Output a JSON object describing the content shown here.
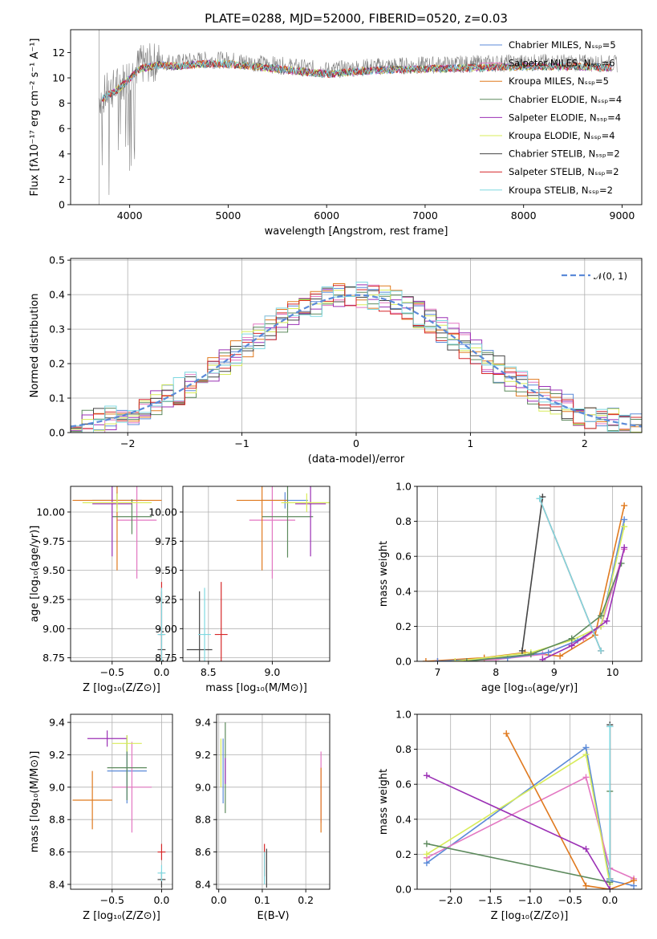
{
  "chart_data": [
    {
      "id": "spectrum",
      "type": "line",
      "title": "PLATE=0288, MJD=52000, FIBERID=0520, z=0.03",
      "xlabel": "wavelength [Angstrom, rest frame]",
      "ylabel": "Flux [fλ10⁻¹⁷ erg cm⁻² s⁻¹ A⁻¹]",
      "xlim": [
        3400,
        9200
      ],
      "ylim": [
        0,
        13.8
      ],
      "xticks": [
        "4000",
        "5000",
        "6000",
        "7000",
        "8000",
        "9000"
      ],
      "yticks": [
        "0",
        "2",
        "4",
        "6",
        "8",
        "10",
        "12"
      ],
      "grid": false,
      "legend_position": "upper-right",
      "legend": [
        {
          "label": "Chabrier MILES, Nₛₛₚ=5",
          "color": "#5b8ad8"
        },
        {
          "label": "Salpeter MILES, Nₛₛₚ=6",
          "color": "#e377c2"
        },
        {
          "label": "Kroupa MILES, Nₛₛₚ=5",
          "color": "#e07a1f"
        },
        {
          "label": "Chabrier ELODIE, Nₛₛₚ=4",
          "color": "#5d8a5d"
        },
        {
          "label": "Salpeter ELODIE, Nₛₛₚ=4",
          "color": "#9b30b5"
        },
        {
          "label": "Kroupa ELODIE, Nₛₛₚ=4",
          "color": "#d8ec5a"
        },
        {
          "label": "Chabrier STELIB, Nₛₛₚ=2",
          "color": "#444444"
        },
        {
          "label": "Salpeter STELIB, Nₛₛₚ=2",
          "color": "#d62728"
        },
        {
          "label": "Kroupa STELIB, Nₛₛₚ=2",
          "color": "#7fd8e0"
        }
      ],
      "data_color": "#808080",
      "continuum": {
        "x": [
          3700,
          3900,
          4100,
          4300,
          4500,
          4700,
          5000,
          5500,
          6000,
          6500,
          7000,
          7500,
          8000,
          8500,
          8900
        ],
        "y": [
          8.5,
          9.5,
          11.0,
          11.3,
          11.2,
          11.4,
          11.4,
          11.0,
          10.6,
          10.9,
          11.0,
          11.1,
          11.2,
          11.2,
          11.1
        ]
      }
    },
    {
      "id": "residuals",
      "type": "histogram",
      "xlabel": "(data-model)/error",
      "ylabel": "Normed distribution",
      "xlim": [
        -2.5,
        2.5
      ],
      "ylim": [
        0,
        0.505
      ],
      "xticks": [
        "−2",
        "−1",
        "0",
        "1",
        "2"
      ],
      "yticks": [
        "0.0",
        "0.1",
        "0.2",
        "0.3",
        "0.4",
        "0.5"
      ],
      "grid": true,
      "legend": {
        "label": "𝒩(0, 1)",
        "color": "#5b8ad8",
        "position": "upper-right"
      },
      "bin_width": 0.1
    },
    {
      "id": "age-vs-Z",
      "type": "errorbar",
      "xlabel": "Z [log₁₀(Z/Z⊙)]",
      "ylabel": "age  [log₁₀(age/yr)]",
      "xlim": [
        -0.92,
        0.11
      ],
      "ylim": [
        8.72,
        10.22
      ],
      "xticks": [
        "−0.5",
        "0.0"
      ],
      "yticks": [
        "8.75",
        "9.00",
        "9.25",
        "9.50",
        "9.75",
        "10.00"
      ],
      "grid": true,
      "points": [
        {
          "x": -0.45,
          "y": 10.1,
          "xerr": 0.25,
          "yerr": 0.07,
          "color": "#5b8ad8"
        },
        {
          "x": -0.25,
          "y": 9.93,
          "xerr": 0.2,
          "yerr": 0.5,
          "color": "#e377c2"
        },
        {
          "x": -0.45,
          "y": 10.1,
          "xerr": 0.45,
          "yerr": 0.6,
          "color": "#e07a1f"
        },
        {
          "x": -0.3,
          "y": 9.96,
          "xerr": 0.2,
          "yerr": 0.15,
          "color": "#5d8a5d"
        },
        {
          "x": -0.5,
          "y": 10.07,
          "xerr": 0.2,
          "yerr": 0.45,
          "color": "#9b30b5"
        },
        {
          "x": -0.45,
          "y": 10.08,
          "xerr": 0.35,
          "yerr": 0.08,
          "color": "#d8ec5a"
        },
        {
          "x": 0.0,
          "y": 8.82,
          "xerr": 0.04,
          "yerr": 0.5,
          "color": "#444444"
        },
        {
          "x": 0.0,
          "y": 8.95,
          "xerr": 0.03,
          "yerr": 0.45,
          "color": "#d62728"
        },
        {
          "x": 0.0,
          "y": 8.95,
          "xerr": 0.04,
          "yerr": 0.4,
          "color": "#7fd8e0"
        }
      ]
    },
    {
      "id": "age-vs-mass",
      "type": "errorbar",
      "xlabel": "mass [log₁₀(M/M⊙)]",
      "xlim": [
        8.3,
        9.45
      ],
      "ylim": [
        8.72,
        10.22
      ],
      "xticks": [
        "8.5",
        "9.0"
      ],
      "yticks": [
        "8.75",
        "9.00",
        "9.25",
        "9.50",
        "9.75",
        "10.00"
      ],
      "grid": true,
      "points": [
        {
          "x": 9.1,
          "y": 10.1,
          "xerr": 0.18,
          "yerr": 0.07,
          "color": "#5b8ad8"
        },
        {
          "x": 9.0,
          "y": 9.93,
          "xerr": 0.18,
          "yerr": 0.5,
          "color": "#e377c2"
        },
        {
          "x": 8.92,
          "y": 10.1,
          "xerr": 0.2,
          "yerr": 0.6,
          "color": "#e07a1f"
        },
        {
          "x": 9.12,
          "y": 9.96,
          "xerr": 0.2,
          "yerr": 0.35,
          "color": "#5d8a5d"
        },
        {
          "x": 9.3,
          "y": 10.07,
          "xerr": 0.12,
          "yerr": 0.45,
          "color": "#9b30b5"
        },
        {
          "x": 9.27,
          "y": 10.08,
          "xerr": 0.2,
          "yerr": 0.08,
          "color": "#d8ec5a"
        },
        {
          "x": 8.43,
          "y": 8.82,
          "xerr": 0.1,
          "yerr": 0.5,
          "color": "#444444"
        },
        {
          "x": 8.6,
          "y": 8.95,
          "xerr": 0.05,
          "yerr": 0.45,
          "color": "#d62728"
        },
        {
          "x": 8.47,
          "y": 8.95,
          "xerr": 0.05,
          "yerr": 0.4,
          "color": "#7fd8e0"
        }
      ]
    },
    {
      "id": "massweight-vs-age",
      "type": "line",
      "xlabel": "age  [log₁₀(age/yr)]",
      "ylabel": "mass weight",
      "xlim": [
        6.65,
        10.5
      ],
      "ylim": [
        0,
        1.0
      ],
      "xticks": [
        "7",
        "8",
        "9",
        "10"
      ],
      "yticks": [
        "0.0",
        "0.2",
        "0.4",
        "0.6",
        "0.8",
        "1.0"
      ],
      "grid": true,
      "series": [
        {
          "color": "#e07a1f",
          "x": [
            6.8,
            7.8,
            8.5,
            9.1,
            9.7,
            10.2
          ],
          "y": [
            0.0,
            0.02,
            0.05,
            0.03,
            0.15,
            0.89
          ]
        },
        {
          "color": "#e377c2",
          "x": [
            7.0,
            8.0,
            8.8,
            9.5,
            9.8,
            10.2
          ],
          "y": [
            0.0,
            0.01,
            0.04,
            0.13,
            0.2,
            0.64
          ]
        },
        {
          "color": "#5b8ad8",
          "x": [
            7.0,
            8.2,
            8.9,
            9.4,
            9.8,
            10.2
          ],
          "y": [
            0.0,
            0.02,
            0.05,
            0.12,
            0.2,
            0.81
          ]
        },
        {
          "color": "#d8ec5a",
          "x": [
            7.3,
            8.6,
            9.3,
            9.8,
            10.2
          ],
          "y": [
            0.0,
            0.05,
            0.12,
            0.2,
            0.77
          ]
        },
        {
          "color": "#5d8a5d",
          "x": [
            7.5,
            8.6,
            9.3,
            9.8,
            10.15
          ],
          "y": [
            0.0,
            0.04,
            0.13,
            0.26,
            0.56
          ]
        },
        {
          "color": "#9b30b5",
          "x": [
            8.8,
            9.3,
            9.9,
            10.2
          ],
          "y": [
            0.01,
            0.09,
            0.23,
            0.65
          ]
        },
        {
          "color": "#444444",
          "x": [
            8.45,
            8.8
          ],
          "y": [
            0.06,
            0.94
          ]
        },
        {
          "color": "#d62728",
          "x": [
            8.75,
            9.8
          ],
          "y": [
            0.93,
            0.06
          ]
        },
        {
          "color": "#7fd8e0",
          "x": [
            8.75,
            9.8
          ],
          "y": [
            0.93,
            0.06
          ]
        }
      ]
    },
    {
      "id": "mass-vs-Z",
      "type": "errorbar",
      "xlabel": "Z [log₁₀(Z/Z⊙)]",
      "ylabel": "mass [log₁₀(M/M⊙)]",
      "xlim": [
        -0.92,
        0.11
      ],
      "ylim": [
        8.37,
        9.45
      ],
      "xticks": [
        "−0.5",
        "0.0"
      ],
      "yticks": [
        "8.4",
        "8.6",
        "8.8",
        "9.0",
        "9.2",
        "9.4"
      ],
      "grid": true,
      "points": [
        {
          "x": -0.35,
          "y": 9.1,
          "xerr": 0.2,
          "yerr": 0.2,
          "color": "#5b8ad8"
        },
        {
          "x": -0.3,
          "y": 9.0,
          "xerr": 0.2,
          "yerr": 0.28,
          "color": "#e377c2"
        },
        {
          "x": -0.7,
          "y": 8.92,
          "xerr": 0.2,
          "yerr": 0.18,
          "color": "#e07a1f"
        },
        {
          "x": -0.35,
          "y": 9.12,
          "xerr": 0.2,
          "yerr": 0.2,
          "color": "#5d8a5d"
        },
        {
          "x": -0.55,
          "y": 9.3,
          "xerr": 0.2,
          "yerr": 0.05,
          "color": "#9b30b5"
        },
        {
          "x": -0.35,
          "y": 9.27,
          "xerr": 0.15,
          "yerr": 0.05,
          "color": "#d8ec5a"
        },
        {
          "x": 0.0,
          "y": 8.43,
          "xerr": 0.04,
          "yerr": 0.05,
          "color": "#444444"
        },
        {
          "x": 0.0,
          "y": 8.6,
          "xerr": 0.04,
          "yerr": 0.05,
          "color": "#d62728"
        },
        {
          "x": 0.0,
          "y": 8.47,
          "xerr": 0.04,
          "yerr": 0.05,
          "color": "#7fd8e0"
        }
      ]
    },
    {
      "id": "mass-vs-EBV",
      "type": "errorbar",
      "xlabel": "E(B-V)",
      "xlim": [
        -0.005,
        0.255
      ],
      "ylim": [
        8.37,
        9.45
      ],
      "xticks": [
        "0.0",
        "0.1",
        "0.2"
      ],
      "yticks": [
        "8.4",
        "8.6",
        "8.8",
        "9.0",
        "9.2",
        "9.4"
      ],
      "grid": true,
      "points": [
        {
          "x": 0.01,
          "y": 9.1,
          "xerr": 0.0,
          "yerr": 0.2,
          "color": "#5b8ad8"
        },
        {
          "x": 0.235,
          "y": 9.0,
          "xerr": 0.0,
          "yerr": 0.22,
          "color": "#e377c2"
        },
        {
          "x": 0.235,
          "y": 8.92,
          "xerr": 0.0,
          "yerr": 0.2,
          "color": "#e07a1f"
        },
        {
          "x": 0.015,
          "y": 9.12,
          "xerr": 0.0,
          "yerr": 0.28,
          "color": "#5d8a5d"
        },
        {
          "x": 0.015,
          "y": 9.1,
          "xerr": 0.0,
          "yerr": 0.08,
          "color": "#9b30b5"
        },
        {
          "x": 0.005,
          "y": 9.15,
          "xerr": 0.0,
          "yerr": 0.15,
          "color": "#d8ec5a"
        },
        {
          "x": 0.11,
          "y": 8.5,
          "xerr": 0.0,
          "yerr": 0.12,
          "color": "#444444"
        },
        {
          "x": 0.105,
          "y": 8.55,
          "xerr": 0.0,
          "yerr": 0.1,
          "color": "#d62728"
        },
        {
          "x": 0.105,
          "y": 8.5,
          "xerr": 0.0,
          "yerr": 0.1,
          "color": "#7fd8e0"
        }
      ]
    },
    {
      "id": "massweight-vs-Z",
      "type": "line",
      "xlabel": "Z [log₁₀(Z/Z⊙)]",
      "ylabel": "mass weight",
      "xlim": [
        -2.42,
        0.4
      ],
      "ylim": [
        0,
        1.0
      ],
      "xticks": [
        "−2.0",
        "−1.5",
        "−1.0",
        "−0.5",
        "0.0"
      ],
      "yticks": [
        "0.0",
        "0.2",
        "0.4",
        "0.6",
        "0.8",
        "1.0"
      ],
      "grid": true,
      "series": [
        {
          "color": "#5b8ad8",
          "x": [
            -2.3,
            -0.3,
            0.0,
            0.3
          ],
          "y": [
            0.15,
            0.81,
            0.05,
            0.02
          ]
        },
        {
          "color": "#e377c2",
          "x": [
            -2.3,
            -0.3,
            0.0,
            0.3
          ],
          "y": [
            0.18,
            0.64,
            0.12,
            0.06
          ]
        },
        {
          "color": "#e07a1f",
          "x": [
            -1.3,
            -0.3,
            0.0,
            0.3
          ],
          "y": [
            0.89,
            0.02,
            0.0,
            0.05
          ]
        },
        {
          "color": "#d8ec5a",
          "x": [
            -2.3,
            -0.3,
            0.0
          ],
          "y": [
            0.2,
            0.77,
            0.03
          ]
        },
        {
          "color": "#5d8a5d",
          "x": [
            -2.3,
            0.0,
            0.0
          ],
          "y": [
            0.26,
            0.04,
            0.56
          ]
        },
        {
          "color": "#9b30b5",
          "x": [
            -2.3,
            -0.3,
            0.0
          ],
          "y": [
            0.65,
            0.23,
            0.0
          ]
        },
        {
          "color": "#444444",
          "x": [
            0.0,
            0.0
          ],
          "y": [
            0.06,
            0.94
          ]
        },
        {
          "color": "#d62728",
          "x": [
            0.0,
            0.0
          ],
          "y": [
            0.06,
            0.93
          ]
        },
        {
          "color": "#7fd8e0",
          "x": [
            0.0,
            0.0
          ],
          "y": [
            0.06,
            0.93
          ]
        }
      ]
    }
  ]
}
